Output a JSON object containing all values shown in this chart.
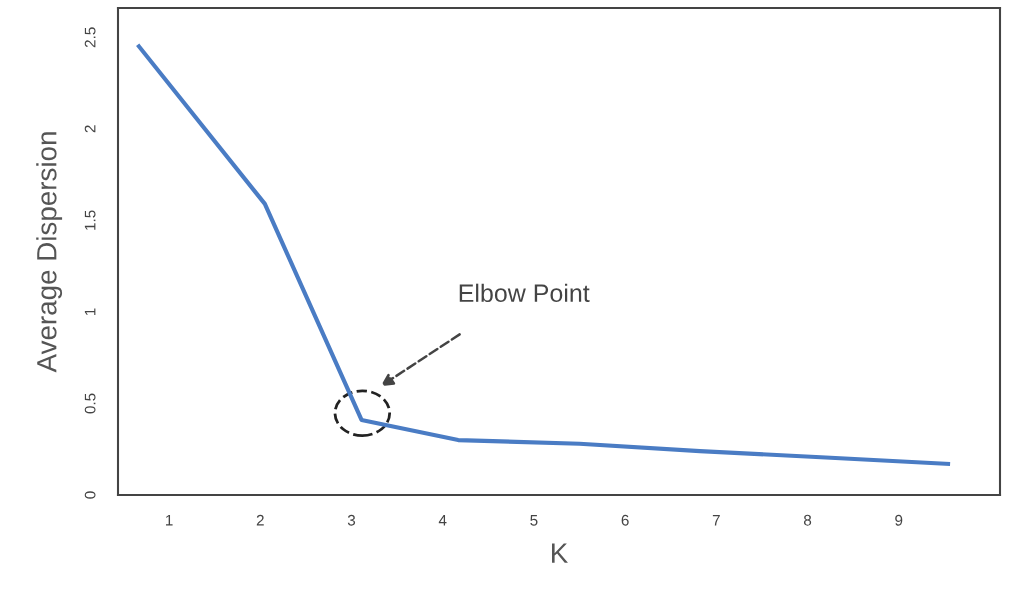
{
  "chart_data": {
    "type": "line",
    "xlabel": "K",
    "ylabel": "Average Dispersion",
    "x": [
      0.67,
      2.05,
      3.11,
      4.17,
      5.5,
      6.82,
      8.2,
      9.54
    ],
    "series": [
      {
        "color": "#4a7cc4",
        "values": [
          2.45,
          1.59,
          0.41,
          0.3,
          0.28,
          0.24,
          0.205,
          0.17
        ]
      }
    ],
    "xlim": [
      0.44,
      10.11
    ],
    "ylim": [
      0,
      2.66
    ],
    "xticks": [
      1,
      2,
      3,
      4,
      5,
      6,
      7,
      8,
      9
    ],
    "yticks": [
      0,
      0.5,
      1,
      1.5,
      2,
      2.5
    ],
    "grid": false,
    "legend": false,
    "marker": "none",
    "line_style": "solid",
    "annotations": [
      "Elbow Point"
    ]
  }
}
